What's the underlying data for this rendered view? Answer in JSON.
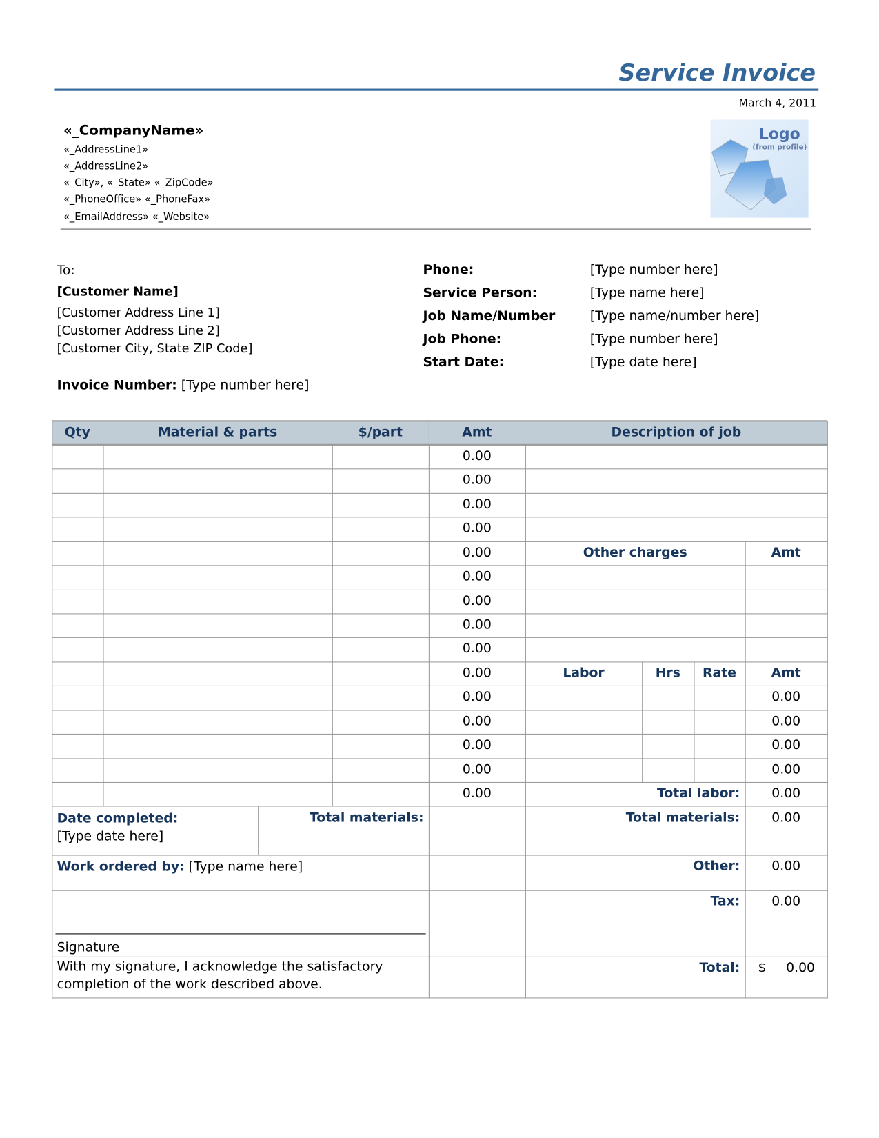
{
  "header": {
    "title": "Service Invoice",
    "date": "March 4, 2011",
    "company_name": "«_CompanyName»",
    "address_lines": [
      "«_AddressLine1»",
      "«_AddressLine2»",
      "«_City», «_State» «_ZipCode»",
      "«_PhoneOffice» «_PhoneFax»",
      "«_EmailAddress» «_Website»"
    ],
    "logo": {
      "text": "Logo",
      "subtext": "(from profile)"
    }
  },
  "customer": {
    "to_label": "To:",
    "name": "[Customer Name]",
    "address1": "[Customer Address Line 1]",
    "address2": "[Customer Address Line 2]",
    "city": "[Customer City, State ZIP Code]",
    "invoice_label": "Invoice Number:",
    "invoice_value": "[Type number here]"
  },
  "job_info": [
    {
      "label": "Phone:",
      "value": "[Type number here]"
    },
    {
      "label": "Service Person:",
      "value": "[Type name here]"
    },
    {
      "label": "Job Name/Number",
      "value": "[Type name/number here]"
    },
    {
      "label": "Job Phone:",
      "value": "[Type number here]"
    },
    {
      "label": "Start Date:",
      "value": "[Type date here]"
    }
  ],
  "materials": {
    "headers": [
      "Qty",
      "Material & parts",
      "$/part",
      "Amt"
    ],
    "amounts": [
      "0.00",
      "0.00",
      "0.00",
      "0.00",
      "0.00",
      "0.00",
      "0.00",
      "0.00",
      "0.00",
      "0.00",
      "0.00",
      "0.00",
      "0.00",
      "0.00",
      "0.00"
    ],
    "date_completed_label": "Date completed:",
    "date_completed_value": "[Type date here]",
    "total_materials_label": "Total materials:",
    "total_materials_value": "0.00",
    "work_ordered_label": "Work ordered by:",
    "work_ordered_value": "[Type name here]",
    "signature_label": "Signature",
    "acknowledgment": [
      "With my signature, I acknowledge the satisfactory",
      "completion of the work described above."
    ]
  },
  "description": {
    "header": "Description of job"
  },
  "other_charges": {
    "header": "Other charges",
    "amt_header": "Amt"
  },
  "labor": {
    "headers": [
      "Labor",
      "Hrs",
      "Rate",
      "Amt"
    ],
    "amounts": [
      "0.00",
      "0.00",
      "0.00",
      "0.00"
    ]
  },
  "totals": {
    "total_labor_label": "Total labor:",
    "total_labor": "0.00",
    "total_materials_label": "Total materials:",
    "total_materials": "0.00",
    "other_label": "Other:",
    "other": "0.00",
    "tax_label": "Tax:",
    "tax": "0.00",
    "total_label": "Total:",
    "currency": "$",
    "total": "0.00"
  },
  "colors": {
    "accent": "#336699",
    "header_bg": "#c0ccd6",
    "label": "#17365d"
  }
}
